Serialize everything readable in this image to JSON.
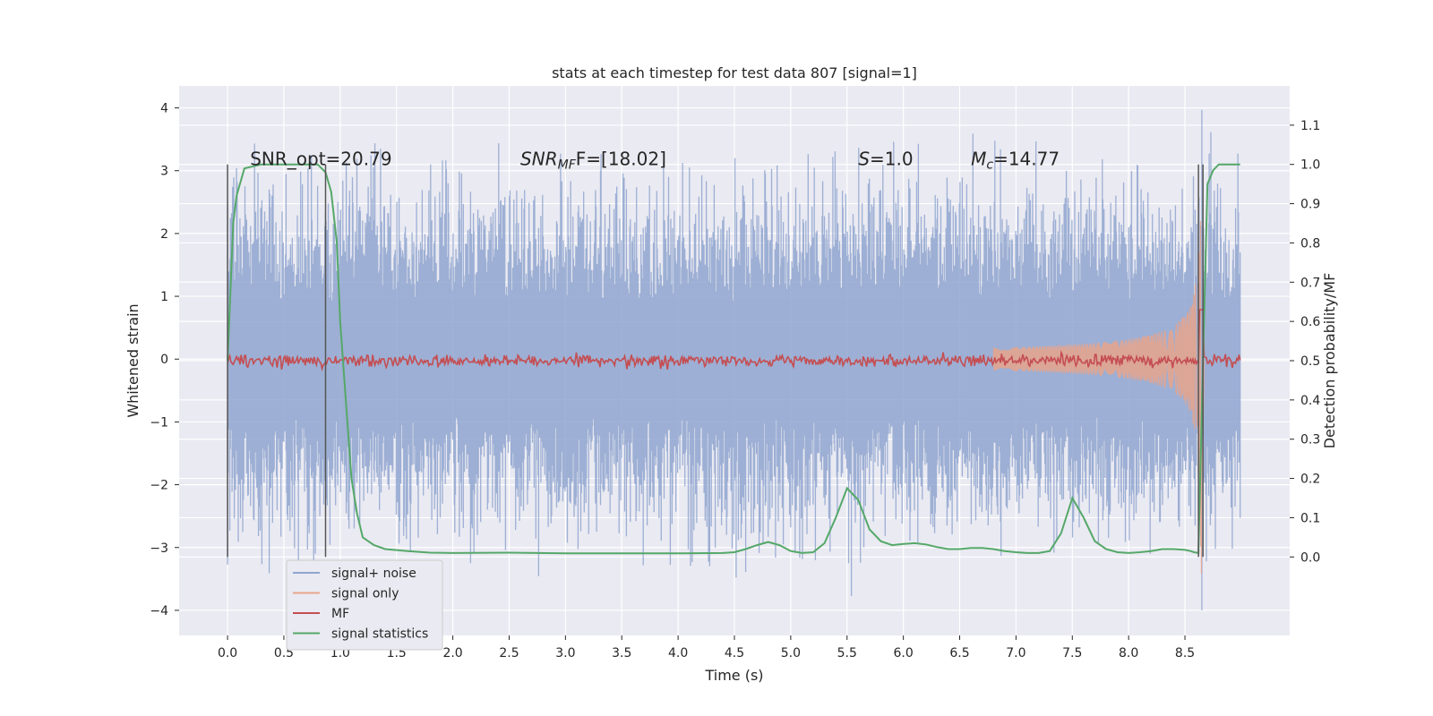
{
  "chart_data": {
    "type": "line",
    "title": "stats at each timestep for test data 807 [signal=1]",
    "xlabel": "Time (s)",
    "ylabel_left": "Whitened strain",
    "ylabel_right": "Detection probability/MF",
    "xlim": [
      -0.43,
      9.43
    ],
    "ylim_left": [
      -4.4,
      4.35
    ],
    "ylim_right": [
      -0.2,
      1.2
    ],
    "x_ticks": [
      "0.0",
      "0.5",
      "1.0",
      "1.5",
      "2.0",
      "2.5",
      "3.0",
      "3.5",
      "4.0",
      "4.5",
      "5.0",
      "5.5",
      "6.0",
      "6.5",
      "7.0",
      "7.5",
      "8.0",
      "8.5"
    ],
    "y_left_ticks": [
      "−4",
      "−3",
      "−2",
      "−1",
      "0",
      "1",
      "2",
      "3",
      "4"
    ],
    "y_right_ticks": [
      "0.0",
      "0.1",
      "0.2",
      "0.3",
      "0.4",
      "0.5",
      "0.6",
      "0.7",
      "0.8",
      "0.9",
      "1.0",
      "1.1"
    ],
    "grid": true,
    "legend_position": "lower-left",
    "series": [
      {
        "name": "signal+ noise",
        "color": "#8fa5cf",
        "axis": "left",
        "style": "noise-band",
        "t_range": [
          0.0,
          8.99
        ],
        "typical_amplitude": 1.2,
        "min": -4.0,
        "max": 3.97
      },
      {
        "name": "signal only",
        "color": "#e8a58c",
        "axis": "left",
        "style": "chirp",
        "t_start": 6.8,
        "t_merger": 8.65,
        "peak": 3.5
      },
      {
        "name": "MF",
        "color": "#c44e52",
        "axis": "right",
        "style": "flat-noise",
        "baseline": 0.5,
        "spread": 0.015,
        "peak_t": 8.65,
        "peak": 0.63
      },
      {
        "name": "signal statistics",
        "color": "#55a868",
        "axis": "right",
        "style": "line",
        "x": [
          0.0,
          0.05,
          0.08,
          0.15,
          0.3,
          0.5,
          0.8,
          0.87,
          0.92,
          0.97,
          1.0,
          1.05,
          1.1,
          1.15,
          1.2,
          1.3,
          1.4,
          1.6,
          1.8,
          2.0,
          2.5,
          3.0,
          3.5,
          4.0,
          4.4,
          4.5,
          4.6,
          4.7,
          4.8,
          4.9,
          5.0,
          5.1,
          5.2,
          5.3,
          5.4,
          5.5,
          5.6,
          5.7,
          5.8,
          5.9,
          6.0,
          6.1,
          6.2,
          6.3,
          6.4,
          6.5,
          6.6,
          6.7,
          6.8,
          6.9,
          7.0,
          7.1,
          7.2,
          7.3,
          7.4,
          7.5,
          7.6,
          7.7,
          7.8,
          7.9,
          8.0,
          8.1,
          8.2,
          8.3,
          8.4,
          8.5,
          8.55,
          8.58,
          8.62,
          8.66,
          8.7,
          8.75,
          8.8,
          8.9,
          8.99
        ],
        "y": [
          0.5,
          0.85,
          0.92,
          0.99,
          1.0,
          1.0,
          1.0,
          0.98,
          0.93,
          0.8,
          0.6,
          0.4,
          0.2,
          0.11,
          0.05,
          0.03,
          0.02,
          0.015,
          0.011,
          0.01,
          0.011,
          0.009,
          0.009,
          0.009,
          0.01,
          0.012,
          0.02,
          0.03,
          0.038,
          0.03,
          0.015,
          0.01,
          0.012,
          0.035,
          0.1,
          0.175,
          0.145,
          0.07,
          0.04,
          0.03,
          0.033,
          0.035,
          0.032,
          0.025,
          0.02,
          0.02,
          0.023,
          0.023,
          0.02,
          0.015,
          0.012,
          0.01,
          0.01,
          0.015,
          0.06,
          0.15,
          0.1,
          0.04,
          0.02,
          0.012,
          0.01,
          0.012,
          0.015,
          0.02,
          0.02,
          0.018,
          0.015,
          0.012,
          0.01,
          0.5,
          0.95,
          0.985,
          1.0,
          1.0,
          1.0
        ]
      }
    ],
    "vertical_lines": [
      {
        "x": 0.0,
        "y_range": [
          -3.15,
          3.1
        ]
      },
      {
        "x": 0.87,
        "y_range": [
          -3.15,
          3.1
        ]
      },
      {
        "x": 8.62,
        "y_range": [
          -3.15,
          3.1
        ]
      },
      {
        "x": 8.66,
        "y_range": [
          -3.15,
          3.1
        ]
      }
    ],
    "annotations": [
      {
        "name": "snr-opt",
        "text": "SNR_opt=20.79",
        "x": 0.2,
        "y": 3.1
      },
      {
        "name": "snr-mf",
        "text": "SNR_MF F=[18.02]",
        "x": 2.6,
        "y": 3.1,
        "prefix": "SNR",
        "sub": "MF",
        "suffix": "F=[18.02]"
      },
      {
        "name": "s-value",
        "text": "S=1.0",
        "x": 5.6,
        "y": 3.1,
        "prefix": "S",
        "sub": "",
        "suffix": "=1.0"
      },
      {
        "name": "mc-value",
        "text": "M_c=14.77",
        "x": 6.6,
        "y": 3.1,
        "prefix": "M",
        "sub": "c",
        "suffix": "=14.77"
      }
    ]
  }
}
